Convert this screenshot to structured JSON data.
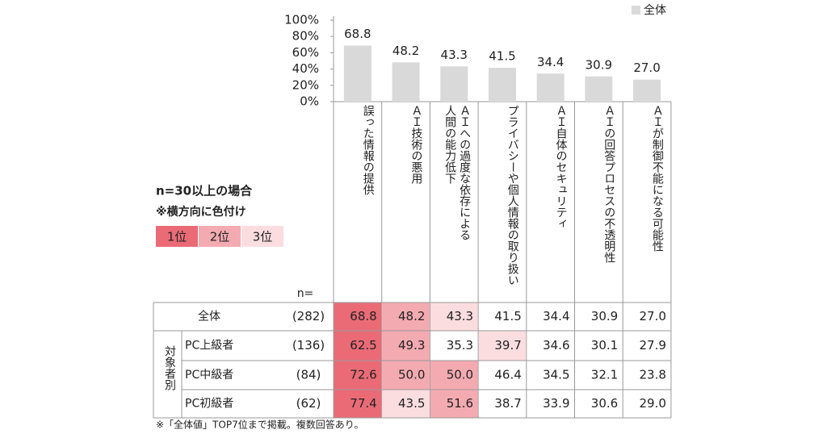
{
  "chart_data": {
    "type": "bar",
    "categories": [
      "誤った情報の提供",
      "ＡＩ技術の悪用",
      "ＡＩへの過度な依存による\n人間の能力低下",
      "プライバシーや個人情報の取り扱い",
      "ＡＩ自体のセキュリティ",
      "ＡＩの回答プロセスの不透明性",
      "ＡＩが制御不能になる可能性"
    ],
    "series": [
      {
        "name": "全体",
        "color": "#d9d9d9",
        "values": [
          68.8,
          48.2,
          43.3,
          41.5,
          34.4,
          30.9,
          27.0
        ],
        "value_labels": [
          "68.8",
          "48.2",
          "43.3",
          "41.5",
          "34.4",
          "30.9",
          "27.0"
        ]
      }
    ],
    "ylim": [
      0,
      100
    ],
    "yticks": [
      {
        "value": 0,
        "label": "0%"
      },
      {
        "value": 20,
        "label": "20%"
      },
      {
        "value": 40,
        "label": "40%"
      },
      {
        "value": 60,
        "label": "60%"
      },
      {
        "value": 80,
        "label": "80%"
      },
      {
        "value": 100,
        "label": "100%"
      }
    ],
    "legend": "top-right"
  },
  "ranking_legend": {
    "title": "n=30以上の場合",
    "note": "※横方向に色付け",
    "items": [
      {
        "label": "1位",
        "color": "#ea6b76"
      },
      {
        "label": "2位",
        "color": "#f4aab1"
      },
      {
        "label": "3位",
        "color": "#fbdde0"
      }
    ]
  },
  "table": {
    "n_header": "n=",
    "group_label": "対象者別",
    "rows": [
      {
        "name": "全体",
        "n": "(282)",
        "cells": [
          "68.8",
          "48.2",
          "43.3",
          "41.5",
          "34.4",
          "30.9",
          "27.0"
        ],
        "ranks": [
          1,
          2,
          3,
          null,
          null,
          null,
          null
        ]
      },
      {
        "name": "PC上級者",
        "n": "(136)",
        "cells": [
          "62.5",
          "49.3",
          "35.3",
          "39.7",
          "34.6",
          "30.1",
          "27.9"
        ],
        "ranks": [
          1,
          2,
          null,
          3,
          null,
          null,
          null
        ]
      },
      {
        "name": "PC中級者",
        "n": "(84)",
        "cells": [
          "72.6",
          "50.0",
          "50.0",
          "46.4",
          "34.5",
          "32.1",
          "23.8"
        ],
        "ranks": [
          1,
          2,
          2,
          null,
          null,
          null,
          null
        ]
      },
      {
        "name": "PC初級者",
        "n": "(62)",
        "cells": [
          "77.4",
          "43.5",
          "51.6",
          "38.7",
          "33.9",
          "30.6",
          "29.0"
        ],
        "ranks": [
          1,
          3,
          2,
          null,
          null,
          null,
          null
        ]
      }
    ]
  },
  "footnote": "※「全体値」TOP7位まで掲載。複数回答あり。"
}
